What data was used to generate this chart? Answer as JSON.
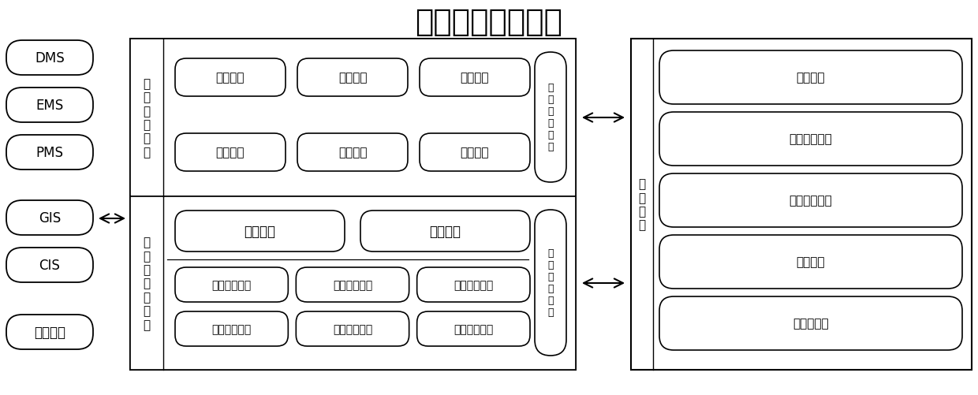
{
  "title": "配电网运检驾驶舱",
  "title_fontsize": 28,
  "bg_color": "#ffffff",
  "left_boxes": [
    "DMS",
    "EMS",
    "PMS",
    "GIS",
    "CIS",
    "用采系统"
  ],
  "service_center_label": "服\n务\n管\n理\n中\n心",
  "service_center_boxes_row1": [
    "服务管理",
    "日志管理",
    "配置管理"
  ],
  "service_center_boxes_row2": [
    "组织管理",
    "角色管理",
    "权限管理"
  ],
  "service_proxy_label": "服\n务\n代\n理\n接\n口",
  "data_center_label": "准\n实\n时\n数\n据\n中\n心",
  "data_center_boxes_top": [
    "数据校验",
    "统一模型"
  ],
  "data_center_boxes_row1": [
    "配网运行信息",
    "配网模型信息",
    "设备台帐信息"
  ],
  "data_center_boxes_row2": [
    "用户用电信息",
    "设备地理信息",
    "用户档案信息"
  ],
  "unified_access_label": "统\n一\n访\n问\n接\n口",
  "app_center_label": "应\n用\n中\n心",
  "app_boxes": [
    "精益调度",
    "台区运行监视",
    "线路运行监视",
    "线损管理",
    "低电压管理"
  ]
}
